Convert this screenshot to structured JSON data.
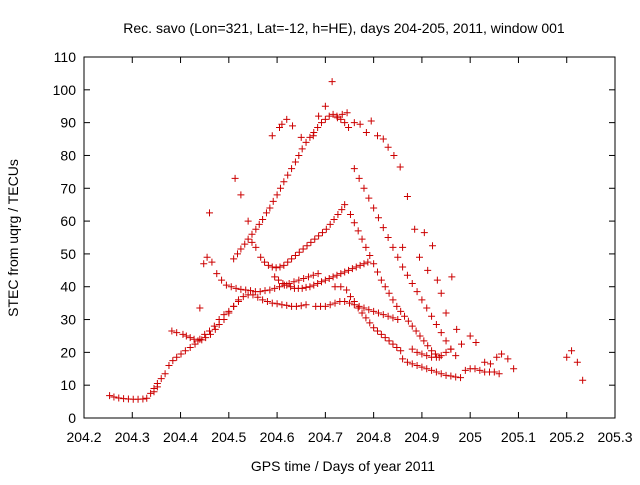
{
  "chart_data": {
    "type": "scatter",
    "title": "Rec. savo (Lon=321, Lat=-12, h=HE), days 204-205, 2011, window 001",
    "xlabel": "GPS time / Days of year 2011",
    "ylabel": "STEC from uqrg / TECUs",
    "xlim": [
      204.2,
      205.3
    ],
    "ylim": [
      0,
      110
    ],
    "xticks": [
      204.2,
      204.3,
      204.4,
      204.5,
      204.6,
      204.7,
      204.8,
      204.9,
      205.0,
      205.1,
      205.2,
      205.3
    ],
    "xtick_labels": [
      "204.2",
      "204.3",
      "204.4",
      "204.5",
      "204.6",
      "204.7",
      "204.8",
      "204.9",
      "205",
      "205.1",
      "205.2",
      "205.3"
    ],
    "yticks": [
      0,
      10,
      20,
      30,
      40,
      50,
      60,
      70,
      80,
      90,
      100,
      110
    ],
    "ytick_labels": [
      "0",
      "10",
      "20",
      "30",
      "40",
      "50",
      "60",
      "70",
      "80",
      "90",
      "100",
      "110"
    ],
    "grid": false,
    "marker": "plus",
    "color": "#cc0000",
    "points": [
      [
        204.253,
        6.8
      ],
      [
        204.262,
        6.4
      ],
      [
        204.272,
        6.1
      ],
      [
        204.282,
        5.9
      ],
      [
        204.292,
        5.8
      ],
      [
        204.302,
        5.7
      ],
      [
        204.312,
        5.7
      ],
      [
        204.322,
        5.8
      ],
      [
        204.33,
        6.0
      ],
      [
        204.338,
        7.5
      ],
      [
        204.345,
        9.0
      ],
      [
        204.352,
        10.5
      ],
      [
        204.36,
        12.0
      ],
      [
        204.368,
        13.5
      ],
      [
        204.376,
        16.0
      ],
      [
        204.384,
        17.5
      ],
      [
        204.392,
        18.5
      ],
      [
        204.401,
        19.5
      ],
      [
        204.41,
        20.5
      ],
      [
        204.42,
        21.5
      ],
      [
        204.43,
        22.5
      ],
      [
        204.44,
        24.0
      ],
      [
        204.45,
        25.5
      ],
      [
        204.46,
        26.5
      ],
      [
        204.47,
        28.0
      ],
      [
        204.48,
        30.0
      ],
      [
        204.49,
        31.5
      ],
      [
        204.5,
        32.5
      ],
      [
        204.51,
        34.0
      ],
      [
        204.52,
        35.5
      ],
      [
        204.53,
        37.0
      ],
      [
        204.54,
        37.5
      ],
      [
        204.55,
        37.5
      ],
      [
        204.56,
        36.8
      ],
      [
        204.57,
        36.0
      ],
      [
        204.58,
        35.5
      ],
      [
        204.59,
        35.0
      ],
      [
        204.6,
        34.8
      ],
      [
        204.61,
        34.5
      ],
      [
        204.62,
        34.3
      ],
      [
        204.63,
        34.0
      ],
      [
        204.64,
        34.0
      ],
      [
        204.65,
        34.2
      ],
      [
        204.66,
        34.5
      ],
      [
        204.345,
        8.0
      ],
      [
        204.352,
        9.5
      ],
      [
        204.382,
        26.5
      ],
      [
        204.392,
        26.0
      ],
      [
        204.405,
        25.5
      ],
      [
        204.412,
        25.0
      ],
      [
        204.42,
        24.5
      ],
      [
        204.428,
        24.0
      ],
      [
        204.436,
        23.5
      ],
      [
        204.444,
        23.8
      ],
      [
        204.452,
        24.5
      ],
      [
        204.462,
        25.5
      ],
      [
        204.472,
        27.0
      ],
      [
        204.48,
        28.5
      ],
      [
        204.49,
        30.0
      ],
      [
        204.5,
        32.0
      ],
      [
        204.51,
        34.0
      ],
      [
        204.52,
        36.0
      ],
      [
        204.44,
        33.5
      ],
      [
        204.448,
        47.0
      ],
      [
        204.455,
        49.0
      ],
      [
        204.46,
        62.5
      ],
      [
        204.465,
        47.5
      ],
      [
        204.475,
        44.0
      ],
      [
        204.485,
        42.0
      ],
      [
        204.495,
        40.5
      ],
      [
        204.505,
        40.0
      ],
      [
        204.515,
        39.5
      ],
      [
        204.525,
        39.2
      ],
      [
        204.535,
        39.0
      ],
      [
        204.545,
        38.8
      ],
      [
        204.555,
        38.5
      ],
      [
        204.565,
        38.5
      ],
      [
        204.575,
        38.8
      ],
      [
        204.585,
        39.0
      ],
      [
        204.595,
        39.5
      ],
      [
        204.605,
        40.0
      ],
      [
        204.615,
        40.5
      ],
      [
        204.625,
        41.0
      ],
      [
        204.635,
        41.5
      ],
      [
        204.645,
        42.0
      ],
      [
        204.655,
        42.5
      ],
      [
        204.665,
        43.0
      ],
      [
        204.675,
        43.5
      ],
      [
        204.685,
        44.0
      ],
      [
        204.51,
        48.5
      ],
      [
        204.518,
        50.0
      ],
      [
        204.525,
        51.5
      ],
      [
        204.533,
        53.0
      ],
      [
        204.54,
        54.5
      ],
      [
        204.548,
        56.0
      ],
      [
        204.556,
        57.5
      ],
      [
        204.563,
        59.0
      ],
      [
        204.57,
        60.5
      ],
      [
        204.578,
        62.5
      ],
      [
        204.585,
        64.0
      ],
      [
        204.592,
        66.0
      ],
      [
        204.6,
        68.0
      ],
      [
        204.607,
        70.0
      ],
      [
        204.614,
        72.0
      ],
      [
        204.622,
        74.0
      ],
      [
        204.63,
        76.0
      ],
      [
        204.638,
        78.0
      ],
      [
        204.645,
        80.0
      ],
      [
        204.652,
        82.0
      ],
      [
        204.66,
        84.0
      ],
      [
        204.668,
        85.5
      ],
      [
        204.676,
        87.0
      ],
      [
        204.684,
        88.5
      ],
      [
        204.692,
        90.0
      ],
      [
        204.7,
        91.0
      ],
      [
        204.708,
        92.0
      ],
      [
        204.716,
        92.5
      ],
      [
        204.724,
        92.0
      ],
      [
        204.732,
        91.0
      ],
      [
        204.74,
        90.0
      ],
      [
        204.748,
        88.5
      ],
      [
        204.513,
        73.0
      ],
      [
        204.525,
        68.0
      ],
      [
        204.54,
        60.0
      ],
      [
        204.548,
        53.5
      ],
      [
        204.556,
        52.0
      ],
      [
        204.566,
        49.0
      ],
      [
        204.574,
        47.5
      ],
      [
        204.582,
        46.5
      ],
      [
        204.59,
        46.0
      ],
      [
        204.598,
        45.8
      ],
      [
        204.606,
        46.0
      ],
      [
        204.614,
        46.5
      ],
      [
        204.622,
        47.5
      ],
      [
        204.63,
        48.5
      ],
      [
        204.638,
        49.5
      ],
      [
        204.646,
        50.5
      ],
      [
        204.654,
        51.5
      ],
      [
        204.662,
        52.5
      ],
      [
        204.67,
        53.5
      ],
      [
        204.678,
        54.5
      ],
      [
        204.686,
        55.5
      ],
      [
        204.694,
        56.5
      ],
      [
        204.702,
        57.5
      ],
      [
        204.71,
        59.0
      ],
      [
        204.718,
        60.5
      ],
      [
        204.726,
        62.0
      ],
      [
        204.734,
        63.5
      ],
      [
        204.59,
        86.0
      ],
      [
        204.605,
        88.5
      ],
      [
        204.61,
        89.5
      ],
      [
        204.62,
        91.0
      ],
      [
        204.632,
        89.0
      ],
      [
        204.65,
        85.5
      ],
      [
        204.675,
        86.0
      ],
      [
        204.686,
        92.0
      ],
      [
        204.7,
        95.0
      ],
      [
        204.714,
        102.5
      ],
      [
        204.725,
        91.5
      ],
      [
        204.735,
        92.5
      ],
      [
        204.745,
        93.0
      ],
      [
        204.76,
        90.0
      ],
      [
        204.772,
        89.5
      ],
      [
        204.785,
        87.0
      ],
      [
        204.795,
        90.5
      ],
      [
        204.808,
        86.0
      ],
      [
        204.82,
        85.0
      ],
      [
        204.83,
        82.5
      ],
      [
        204.842,
        80.0
      ],
      [
        204.855,
        76.5
      ],
      [
        204.595,
        43.0
      ],
      [
        204.603,
        42.0
      ],
      [
        204.612,
        41.0
      ],
      [
        204.62,
        40.5
      ],
      [
        204.628,
        40.0
      ],
      [
        204.636,
        39.5
      ],
      [
        204.644,
        39.5
      ],
      [
        204.652,
        39.5
      ],
      [
        204.66,
        39.8
      ],
      [
        204.668,
        40.0
      ],
      [
        204.676,
        40.5
      ],
      [
        204.684,
        41.0
      ],
      [
        204.692,
        41.5
      ],
      [
        204.7,
        42.0
      ],
      [
        204.708,
        42.5
      ],
      [
        204.716,
        43.0
      ],
      [
        204.724,
        43.5
      ],
      [
        204.732,
        44.0
      ],
      [
        204.74,
        44.5
      ],
      [
        204.748,
        45.0
      ],
      [
        204.756,
        45.5
      ],
      [
        204.764,
        46.0
      ],
      [
        204.772,
        46.5
      ],
      [
        204.78,
        47.0
      ],
      [
        204.788,
        47.5
      ],
      [
        204.68,
        34.0
      ],
      [
        204.69,
        34.0
      ],
      [
        204.7,
        34.0
      ],
      [
        204.71,
        34.5
      ],
      [
        204.72,
        35.0
      ],
      [
        204.73,
        35.5
      ],
      [
        204.74,
        35.5
      ],
      [
        204.75,
        35.0
      ],
      [
        204.76,
        34.5
      ],
      [
        204.77,
        34.0
      ],
      [
        204.78,
        33.5
      ],
      [
        204.79,
        33.0
      ],
      [
        204.8,
        32.5
      ],
      [
        204.81,
        32.0
      ],
      [
        204.82,
        31.5
      ],
      [
        204.83,
        31.0
      ],
      [
        204.84,
        30.5
      ],
      [
        204.85,
        30.0
      ],
      [
        204.72,
        40.0
      ],
      [
        204.732,
        40.0
      ],
      [
        204.744,
        39.0
      ],
      [
        204.752,
        37.0
      ],
      [
        204.76,
        35.5
      ],
      [
        204.768,
        33.5
      ],
      [
        204.776,
        32.0
      ],
      [
        204.784,
        30.5
      ],
      [
        204.792,
        29.0
      ],
      [
        204.8,
        27.5
      ],
      [
        204.808,
        26.5
      ],
      [
        204.816,
        25.5
      ],
      [
        204.824,
        24.5
      ],
      [
        204.832,
        23.5
      ],
      [
        204.84,
        22.5
      ],
      [
        204.848,
        21.5
      ],
      [
        204.856,
        20.5
      ],
      [
        204.74,
        65.0
      ],
      [
        204.752,
        62.0
      ],
      [
        204.76,
        59.5
      ],
      [
        204.768,
        57.0
      ],
      [
        204.776,
        54.5
      ],
      [
        204.784,
        52.0
      ],
      [
        204.792,
        49.5
      ],
      [
        204.8,
        47.0
      ],
      [
        204.808,
        44.5
      ],
      [
        204.816,
        42.0
      ],
      [
        204.824,
        40.0
      ],
      [
        204.832,
        38.0
      ],
      [
        204.84,
        36.0
      ],
      [
        204.848,
        34.0
      ],
      [
        204.856,
        32.5
      ],
      [
        204.864,
        31.0
      ],
      [
        204.872,
        29.5
      ],
      [
        204.88,
        28.0
      ],
      [
        204.888,
        26.5
      ],
      [
        204.896,
        25.0
      ],
      [
        204.904,
        23.5
      ],
      [
        204.912,
        22.0
      ],
      [
        204.92,
        20.5
      ],
      [
        204.928,
        19.5
      ],
      [
        204.936,
        18.5
      ],
      [
        204.76,
        76.0
      ],
      [
        204.77,
        73.0
      ],
      [
        204.78,
        70.0
      ],
      [
        204.79,
        67.0
      ],
      [
        204.8,
        64.0
      ],
      [
        204.81,
        61.0
      ],
      [
        204.82,
        58.0
      ],
      [
        204.83,
        55.0
      ],
      [
        204.84,
        52.0
      ],
      [
        204.85,
        49.0
      ],
      [
        204.86,
        46.0
      ],
      [
        204.87,
        43.5
      ],
      [
        204.88,
        41.0
      ],
      [
        204.89,
        38.5
      ],
      [
        204.9,
        36.0
      ],
      [
        204.91,
        33.5
      ],
      [
        204.92,
        31.0
      ],
      [
        204.93,
        28.5
      ],
      [
        204.94,
        26.0
      ],
      [
        204.95,
        23.5
      ],
      [
        204.96,
        21.0
      ],
      [
        204.97,
        19.0
      ],
      [
        204.86,
        52.0
      ],
      [
        204.87,
        67.5
      ],
      [
        204.885,
        57.5
      ],
      [
        204.895,
        49.0
      ],
      [
        204.905,
        56.5
      ],
      [
        204.912,
        45.0
      ],
      [
        204.922,
        52.5
      ],
      [
        204.932,
        42.0
      ],
      [
        204.94,
        38.0
      ],
      [
        204.95,
        32.0
      ],
      [
        204.962,
        43.0
      ],
      [
        204.972,
        27.0
      ],
      [
        204.982,
        22.5
      ],
      [
        204.86,
        18.0
      ],
      [
        204.87,
        17.0
      ],
      [
        204.88,
        16.5
      ],
      [
        204.89,
        16.0
      ],
      [
        204.9,
        15.5
      ],
      [
        204.91,
        15.0
      ],
      [
        204.92,
        14.5
      ],
      [
        204.93,
        14.0
      ],
      [
        204.94,
        13.5
      ],
      [
        204.95,
        13.0
      ],
      [
        204.96,
        12.8
      ],
      [
        204.97,
        12.5
      ],
      [
        204.98,
        12.3
      ],
      [
        204.88,
        21.0
      ],
      [
        204.89,
        20.0
      ],
      [
        204.9,
        19.5
      ],
      [
        204.91,
        19.0
      ],
      [
        204.92,
        18.5
      ],
      [
        204.93,
        18.5
      ],
      [
        204.94,
        19.0
      ],
      [
        204.95,
        20.0
      ],
      [
        204.96,
        21.0
      ],
      [
        204.99,
        14.5
      ],
      [
        205.0,
        15.0
      ],
      [
        205.01,
        15.0
      ],
      [
        205.02,
        14.5
      ],
      [
        205.03,
        14.0
      ],
      [
        205.04,
        14.0
      ],
      [
        205.05,
        14.0
      ],
      [
        205.06,
        13.5
      ],
      [
        205.0,
        25.0
      ],
      [
        205.012,
        23.0
      ],
      [
        205.03,
        17.0
      ],
      [
        205.042,
        16.5
      ],
      [
        205.055,
        18.5
      ],
      [
        205.065,
        19.5
      ],
      [
        205.078,
        18.0
      ],
      [
        205.09,
        15.0
      ],
      [
        205.2,
        18.5
      ],
      [
        205.21,
        20.5
      ],
      [
        205.222,
        17.0
      ],
      [
        205.233,
        11.5
      ]
    ]
  }
}
